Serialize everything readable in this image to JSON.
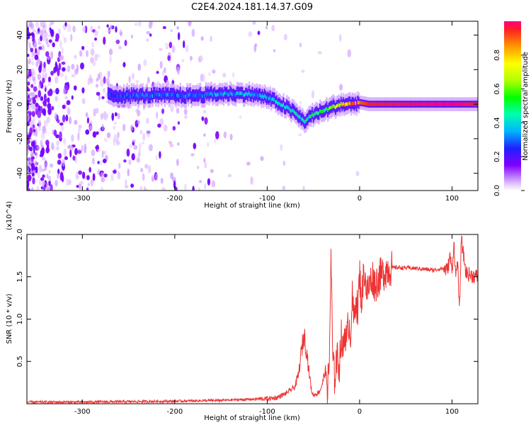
{
  "title": "C2E4.2024.181.14.37.G09",
  "chart_data": [
    {
      "type": "heatmap",
      "name": "spectrogram",
      "xlabel": "Height of straight line (km)",
      "ylabel": "Frequency (Hz)",
      "xlim": [
        -360,
        128
      ],
      "ylim": [
        -50,
        48
      ],
      "x_ticks": [
        -300,
        -200,
        -100,
        0,
        100
      ],
      "x_tick_labels": [
        "-300",
        "-200",
        "-100",
        "0",
        "100"
      ],
      "y_ticks": [
        -40,
        -20,
        0,
        20,
        40
      ],
      "y_tick_labels": [
        "-40",
        "-20",
        "0",
        "20",
        "40"
      ],
      "colorbar": {
        "label": "Normalized spectral amplitude",
        "range": [
          0,
          1
        ],
        "ticks": [
          0.0,
          0.2,
          0.4,
          0.6,
          0.8
        ],
        "tick_labels": [
          "0.0",
          "0.2",
          "0.4",
          "0.6",
          "0.8"
        ]
      },
      "ridge": {
        "x": [
          -270,
          -240,
          -210,
          -180,
          -150,
          -120,
          -100,
          -85,
          -70,
          -60,
          -50,
          -40,
          -30,
          -20,
          -10,
          0,
          10,
          50,
          100,
          128
        ],
        "frequency": [
          5,
          5,
          5,
          5,
          6,
          6,
          4,
          0,
          -5,
          -10,
          -6,
          -4,
          -2,
          0,
          0,
          1,
          0,
          0,
          0,
          0
        ],
        "amplitude": [
          0.25,
          0.3,
          0.3,
          0.3,
          0.35,
          0.35,
          0.35,
          0.4,
          0.45,
          0.4,
          0.5,
          0.5,
          0.6,
          0.75,
          0.85,
          0.9,
          0.95,
          0.98,
          1.0,
          0.95
        ]
      }
    },
    {
      "type": "line",
      "name": "snr",
      "xlabel": "Height of straight line (km)",
      "ylabel": "SNR (10 * v/v)",
      "scale_label": "(x10^4)",
      "xlim": [
        -360,
        128
      ],
      "ylim": [
        0,
        2.0
      ],
      "x_ticks": [
        -300,
        -200,
        -100,
        0,
        100
      ],
      "x_tick_labels": [
        "-300",
        "-200",
        "-100",
        "0",
        "100"
      ],
      "y_ticks": [
        0.5,
        1.0,
        1.5,
        2.0
      ],
      "y_tick_labels": [
        "0.5",
        "1.0",
        "1.5",
        "2.0"
      ],
      "color": "#ee3333",
      "series": [
        {
          "name": "SNR",
          "x": [
            -360,
            -300,
            -200,
            -150,
            -100,
            -90,
            -80,
            -70,
            -66,
            -63,
            -60,
            -57,
            -55,
            -52,
            -50,
            -46,
            -43,
            -40,
            -37,
            -35,
            -33,
            -31,
            -29,
            -27,
            -25,
            -22,
            -20,
            -18,
            -16,
            -14,
            -12,
            -10,
            -8,
            -6,
            -4,
            -2,
            0,
            2,
            5,
            8,
            11,
            14,
            17,
            20,
            24,
            28,
            32,
            40,
            60,
            80,
            90,
            95,
            98,
            100,
            102,
            104,
            106,
            108,
            110,
            115,
            120,
            128
          ],
          "y": [
            0.02,
            0.02,
            0.03,
            0.04,
            0.06,
            0.07,
            0.12,
            0.2,
            0.35,
            0.62,
            0.82,
            0.6,
            0.4,
            0.15,
            0.1,
            0.12,
            0.15,
            0.25,
            0.4,
            0.2,
            0.35,
            1.75,
            0.5,
            0.3,
            0.55,
            0.45,
            0.8,
            0.6,
            0.9,
            0.7,
            1.0,
            0.8,
            1.25,
            0.95,
            1.3,
            1.05,
            1.55,
            1.2,
            1.6,
            1.3,
            1.42,
            1.5,
            1.4,
            1.48,
            1.52,
            1.58,
            1.6,
            1.61,
            1.6,
            1.58,
            1.6,
            1.58,
            1.75,
            1.55,
            1.92,
            1.5,
            1.7,
            1.05,
            1.95,
            1.55,
            1.52,
            1.5
          ]
        }
      ]
    }
  ]
}
